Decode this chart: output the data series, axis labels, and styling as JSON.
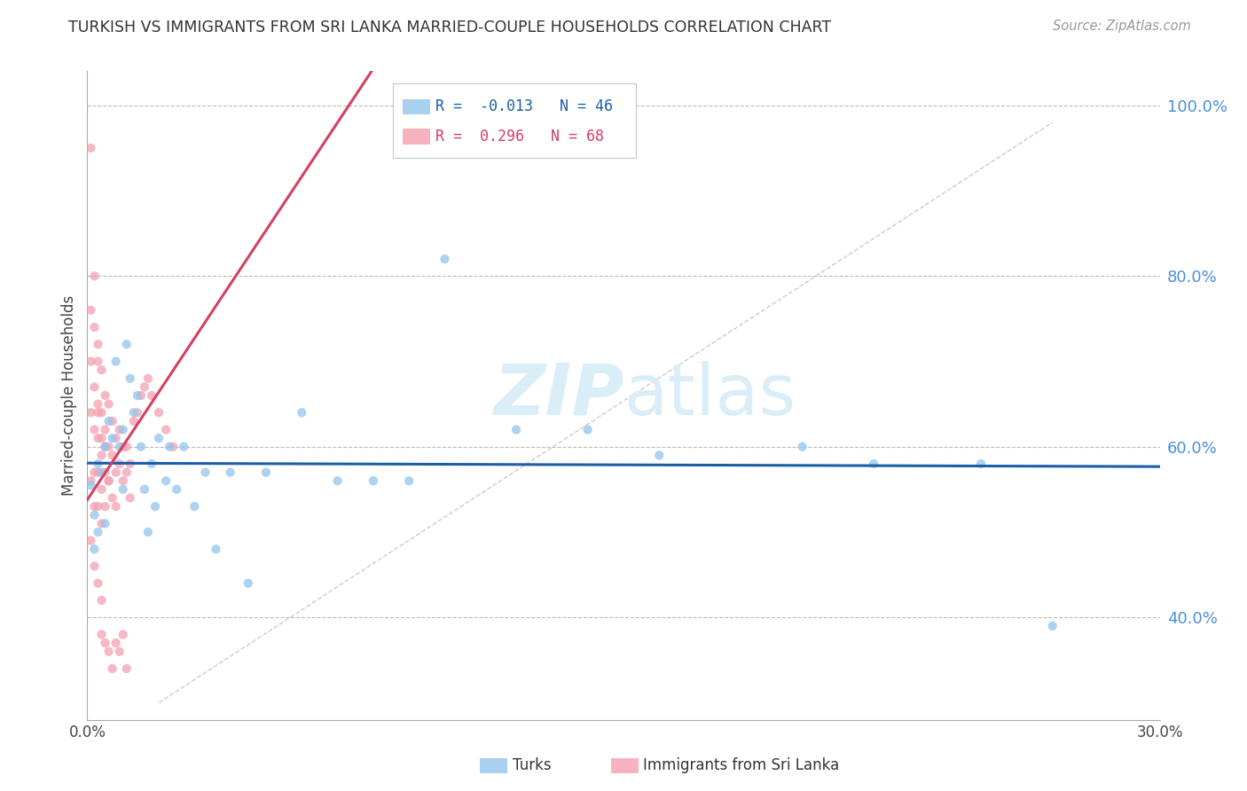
{
  "title": "TURKISH VS IMMIGRANTS FROM SRI LANKA MARRIED-COUPLE HOUSEHOLDS CORRELATION CHART",
  "source": "Source: ZipAtlas.com",
  "ylabel": "Married-couple Households",
  "xlim": [
    0.0,
    0.3
  ],
  "ylim": [
    0.28,
    1.04
  ],
  "yticks": [
    0.4,
    0.6,
    0.8,
    1.0
  ],
  "ytick_labels": [
    "40.0%",
    "60.0%",
    "80.0%",
    "100.0%"
  ],
  "xticks": [
    0.0,
    0.05,
    0.1,
    0.15,
    0.2,
    0.25,
    0.3
  ],
  "xtick_labels": [
    "0.0%",
    "",
    "",
    "",
    "",
    "",
    "30.0%"
  ],
  "turks_R": -0.013,
  "turks_N": 46,
  "sri_lanka_R": 0.296,
  "sri_lanka_N": 68,
  "turks_color": "#92C5EB",
  "sri_lanka_color": "#F4A0B0",
  "turks_line_color": "#1A5EA8",
  "sri_lanka_line_color": "#D44060",
  "diagonal_line_color": "#CCCCCC",
  "background_color": "#FFFFFF",
  "watermark_color": "#DAEEF8",
  "turks_x": [
    0.001,
    0.002,
    0.002,
    0.003,
    0.003,
    0.004,
    0.005,
    0.005,
    0.006,
    0.007,
    0.008,
    0.009,
    0.01,
    0.01,
    0.011,
    0.012,
    0.013,
    0.014,
    0.015,
    0.016,
    0.017,
    0.018,
    0.019,
    0.02,
    0.022,
    0.023,
    0.025,
    0.027,
    0.03,
    0.033,
    0.036,
    0.04,
    0.045,
    0.05,
    0.06,
    0.07,
    0.08,
    0.09,
    0.1,
    0.12,
    0.14,
    0.16,
    0.2,
    0.22,
    0.25,
    0.27
  ],
  "turks_y": [
    0.555,
    0.52,
    0.48,
    0.58,
    0.5,
    0.57,
    0.6,
    0.51,
    0.63,
    0.61,
    0.7,
    0.6,
    0.62,
    0.55,
    0.72,
    0.68,
    0.64,
    0.66,
    0.6,
    0.55,
    0.5,
    0.58,
    0.53,
    0.61,
    0.56,
    0.6,
    0.55,
    0.6,
    0.53,
    0.57,
    0.48,
    0.57,
    0.44,
    0.57,
    0.64,
    0.56,
    0.56,
    0.56,
    0.82,
    0.62,
    0.62,
    0.59,
    0.6,
    0.58,
    0.58,
    0.39
  ],
  "sri_lanka_x": [
    0.001,
    0.001,
    0.001,
    0.001,
    0.001,
    0.002,
    0.002,
    0.002,
    0.002,
    0.002,
    0.003,
    0.003,
    0.003,
    0.003,
    0.003,
    0.004,
    0.004,
    0.004,
    0.004,
    0.004,
    0.005,
    0.005,
    0.005,
    0.005,
    0.006,
    0.006,
    0.006,
    0.007,
    0.007,
    0.007,
    0.008,
    0.008,
    0.008,
    0.009,
    0.009,
    0.01,
    0.01,
    0.011,
    0.011,
    0.012,
    0.012,
    0.013,
    0.014,
    0.015,
    0.016,
    0.017,
    0.018,
    0.02,
    0.022,
    0.024,
    0.001,
    0.002,
    0.003,
    0.004,
    0.004,
    0.005,
    0.006,
    0.007,
    0.008,
    0.009,
    0.01,
    0.011,
    0.002,
    0.003,
    0.003,
    0.004,
    0.005,
    0.006
  ],
  "sri_lanka_y": [
    0.95,
    0.76,
    0.7,
    0.64,
    0.56,
    0.8,
    0.67,
    0.62,
    0.57,
    0.53,
    0.7,
    0.65,
    0.61,
    0.57,
    0.53,
    0.69,
    0.64,
    0.59,
    0.55,
    0.51,
    0.66,
    0.62,
    0.57,
    0.53,
    0.65,
    0.6,
    0.56,
    0.63,
    0.59,
    0.54,
    0.61,
    0.57,
    0.53,
    0.62,
    0.58,
    0.6,
    0.56,
    0.6,
    0.57,
    0.58,
    0.54,
    0.63,
    0.64,
    0.66,
    0.67,
    0.68,
    0.66,
    0.64,
    0.62,
    0.6,
    0.49,
    0.46,
    0.44,
    0.42,
    0.38,
    0.37,
    0.36,
    0.34,
    0.37,
    0.36,
    0.38,
    0.34,
    0.74,
    0.72,
    0.64,
    0.61,
    0.6,
    0.56
  ]
}
